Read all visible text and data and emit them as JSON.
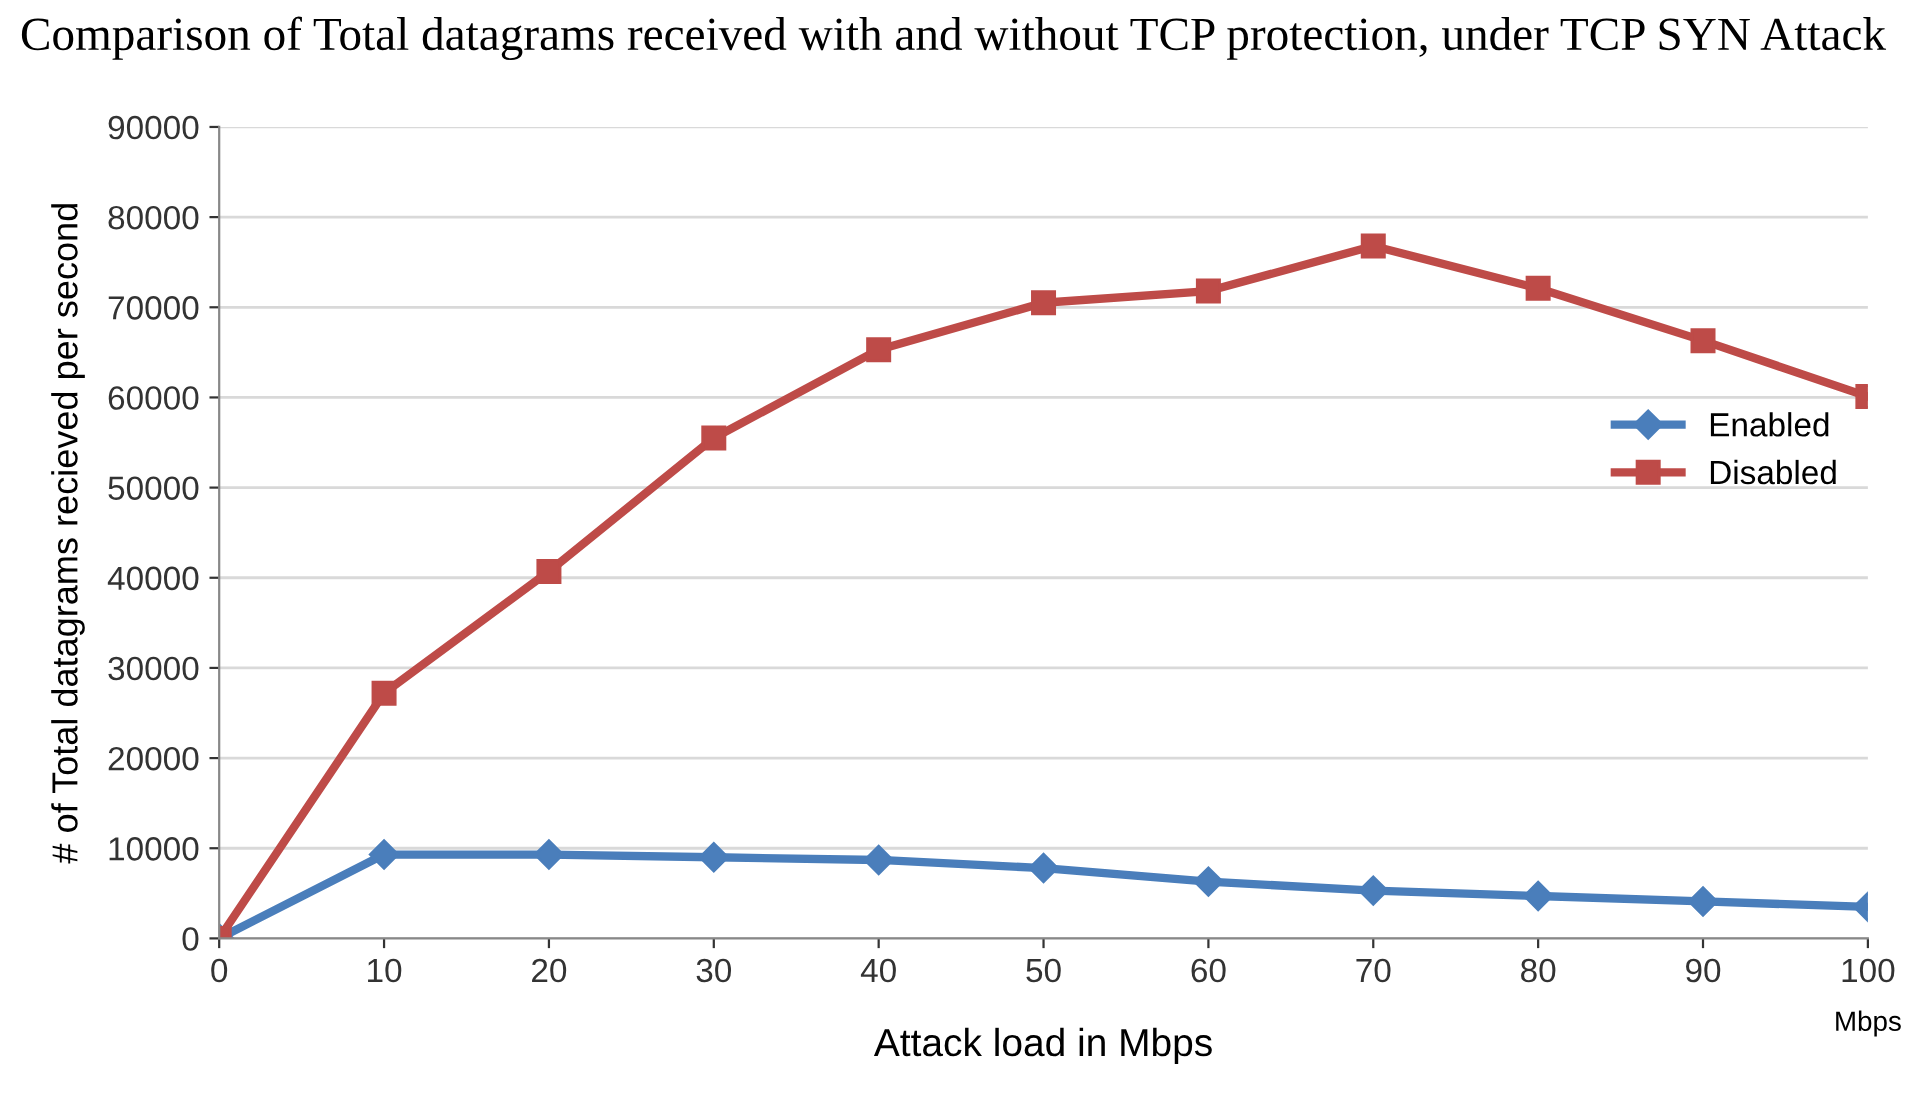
{
  "chart_data": {
    "type": "line",
    "title": "Comparison of Total datagrams received with and without TCP protection, under TCP SYN Attack",
    "xlabel": "Attack load in Mbps",
    "ylabel": "# of Total datagrams recieved per second",
    "categories": [
      "0",
      "10",
      "20",
      "30",
      "40",
      "50",
      "60",
      "70",
      "80",
      "90",
      "100"
    ],
    "series": [
      {
        "name": "Enabled",
        "color": "#4a7ebb",
        "marker": "diamond",
        "values": [
          0,
          9300,
          9300,
          9000,
          8700,
          7800,
          6300,
          5300,
          4700,
          4100,
          3500
        ]
      },
      {
        "name": "Disabled",
        "color": "#be4b48",
        "marker": "square",
        "values": [
          0,
          27200,
          40700,
          55500,
          65300,
          70500,
          71800,
          76800,
          72100,
          66300,
          60100
        ]
      }
    ],
    "ylim": [
      0,
      90000
    ],
    "yticks": [
      0,
      10000,
      20000,
      30000,
      40000,
      50000,
      60000,
      70000,
      80000,
      90000
    ],
    "grid": "y",
    "legend": "right",
    "line_style": "solid",
    "annotations": [
      "Mbps"
    ]
  }
}
